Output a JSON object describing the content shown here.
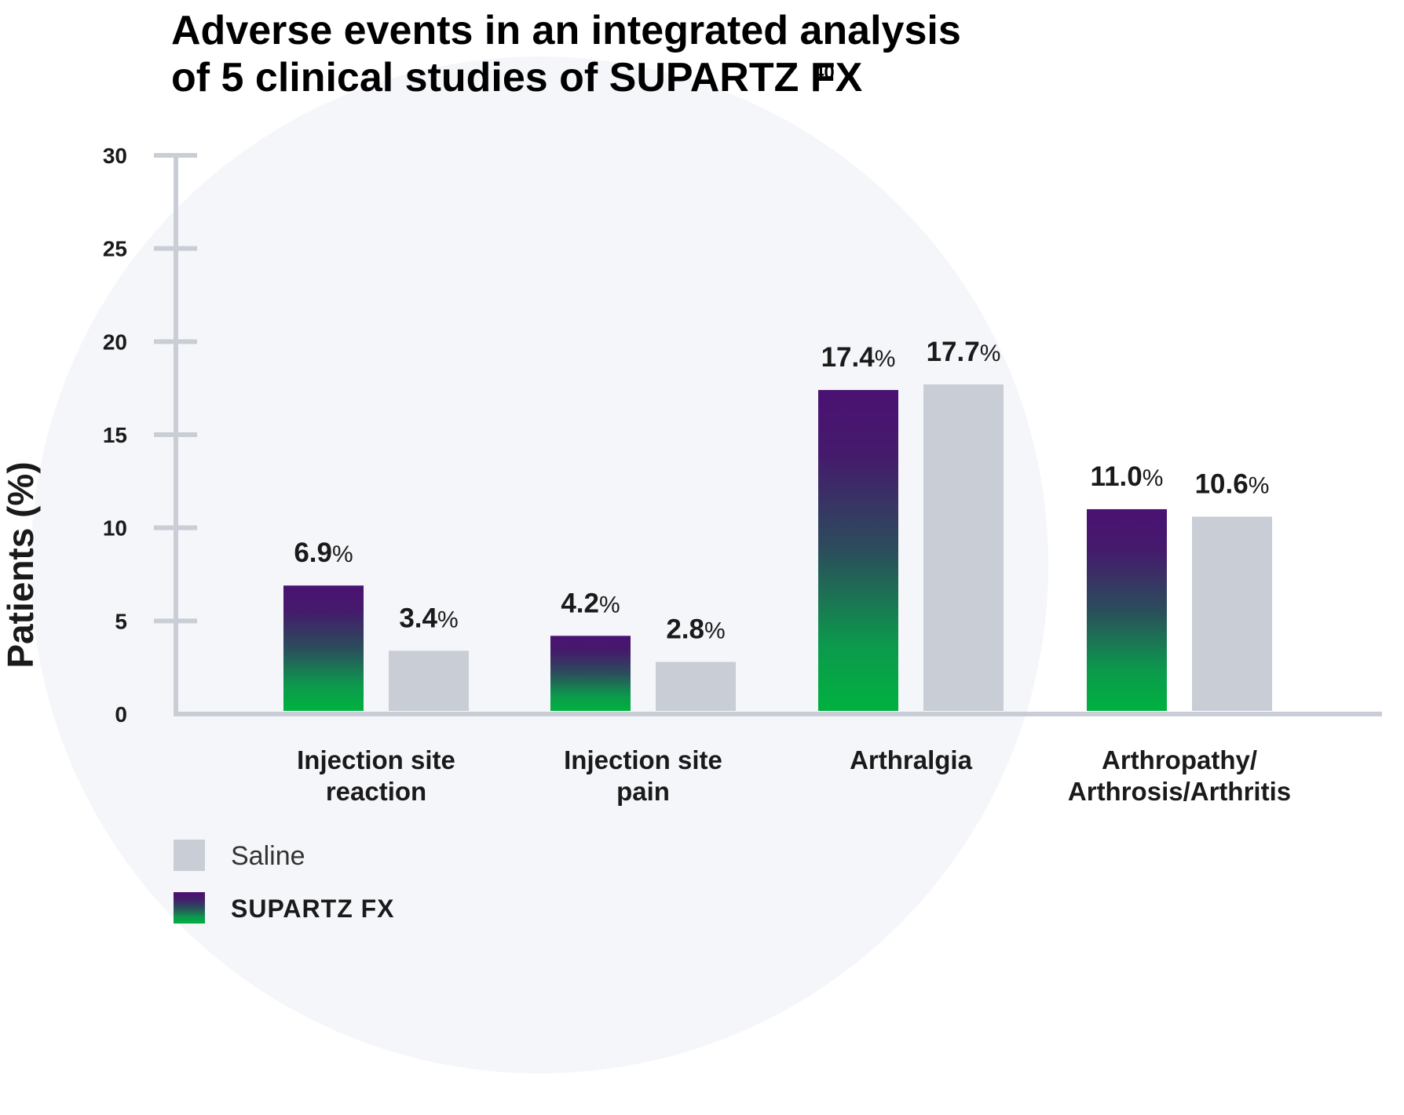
{
  "chart_data": {
    "type": "bar",
    "title": "Adverse events in an integrated analysis of 5 clinical studies of SUPARTZ FX",
    "title_lines": [
      "Adverse events in an integrated analysis",
      "of 5 clinical studies of SUPARTZ FX"
    ],
    "title_superscript": "40",
    "ylabel": "Patients (%)",
    "xlabel": "",
    "ylim": [
      0,
      30
    ],
    "yticks": [
      0,
      5,
      10,
      15,
      20,
      25,
      30
    ],
    "grid": false,
    "categories": [
      [
        "Injection site",
        "reaction"
      ],
      [
        "Injection site",
        "pain"
      ],
      [
        "Arthralgia"
      ],
      [
        "Arthropathy/",
        "Arthrosis/Arthritis"
      ]
    ],
    "series": [
      {
        "name": "SUPARTZ FX",
        "values": [
          6.9,
          4.2,
          17.4,
          11.0
        ],
        "labels": [
          "6.9",
          "4.2",
          "17.4",
          "11.0"
        ],
        "color_top": "#4a1272",
        "color_bottom": "#00b140"
      },
      {
        "name": "Saline",
        "values": [
          3.4,
          2.8,
          17.7,
          10.6
        ],
        "labels": [
          "3.4",
          "2.8",
          "17.7",
          "10.6"
        ],
        "color": "#c9ced6"
      }
    ],
    "label_unit": "%",
    "legend": {
      "position": "bottom-left",
      "items": [
        {
          "name": "Saline",
          "color": "#c9ced6"
        },
        {
          "name": "SUPARTZ FX",
          "color_top": "#4a1272",
          "color_bottom": "#00b140"
        }
      ]
    }
  },
  "colors": {
    "axis": "#c9ced6",
    "background_circle": "#f5f6fa",
    "text": "#1a1a1a"
  }
}
